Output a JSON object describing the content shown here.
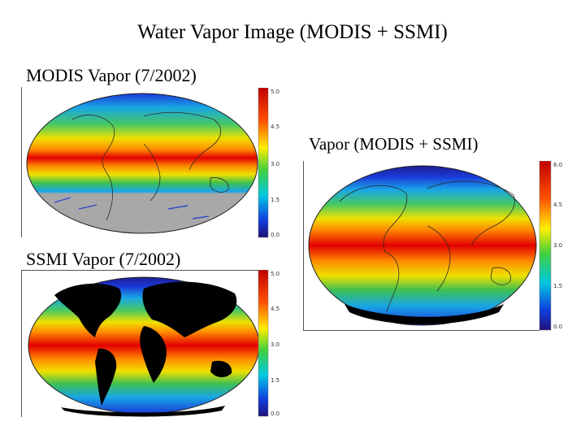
{
  "title": "Water Vapor Image (MODIS + SSMI)",
  "panels": {
    "modis": {
      "caption": "MODIS Vapor (7/2002)",
      "colorbar_ticks": [
        "5.0",
        "4.5",
        "3.0",
        "1.5",
        "0.0"
      ]
    },
    "ssmi": {
      "caption": "SSMI Vapor (7/2002)",
      "colorbar_ticks": [
        "5.0",
        "4.5",
        "3.0",
        "1.5",
        "0.0"
      ]
    },
    "combined": {
      "caption": "Vapor (MODIS + SSMI)",
      "colorbar_ticks": [
        "6.0",
        "4.5",
        "3.0",
        "1.5",
        "0.0"
      ]
    }
  },
  "colors": {
    "high": "#e00000",
    "upper": "#ff8c00",
    "mid": "#ffee00",
    "midlow": "#22c022",
    "low": "#00c8d8",
    "verylow": "#1030d0",
    "nodata_gray": "#a8a8a8",
    "land_black": "#000000"
  }
}
